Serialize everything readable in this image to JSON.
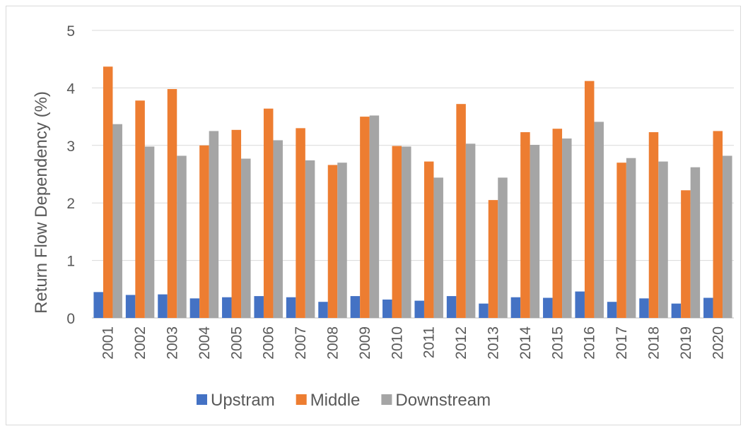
{
  "chart_data": {
    "type": "bar",
    "title": "",
    "xlabel": "",
    "ylabel": "Return Flow Dependency  (%)",
    "ylim": [
      0,
      5
    ],
    "yticks": [
      0,
      1,
      2,
      3,
      4,
      5
    ],
    "grid": true,
    "legend_position": "bottom",
    "categories": [
      "2001",
      "2002",
      "2003",
      "2004",
      "2005",
      "2006",
      "2007",
      "2008",
      "2009",
      "2010",
      "2011",
      "2012",
      "2013",
      "2014",
      "2015",
      "2016",
      "2017",
      "2018",
      "2019",
      "2020"
    ],
    "series": [
      {
        "name": "Upstram",
        "color": "#4472c4",
        "values": [
          0.45,
          0.4,
          0.41,
          0.34,
          0.36,
          0.38,
          0.36,
          0.28,
          0.38,
          0.32,
          0.3,
          0.38,
          0.25,
          0.36,
          0.35,
          0.46,
          0.28,
          0.34,
          0.25,
          0.35
        ]
      },
      {
        "name": "Middle",
        "color": "#ed7d31",
        "values": [
          4.37,
          3.78,
          3.98,
          3.0,
          3.27,
          3.64,
          3.3,
          2.66,
          3.5,
          2.99,
          2.72,
          3.72,
          2.05,
          3.23,
          3.29,
          4.12,
          2.7,
          3.23,
          2.22,
          3.25
        ]
      },
      {
        "name": "Downstream",
        "color": "#a5a5a5",
        "values": [
          3.37,
          2.98,
          2.82,
          3.25,
          2.77,
          3.09,
          2.74,
          2.7,
          3.52,
          2.98,
          2.44,
          3.03,
          2.44,
          3.01,
          3.12,
          3.41,
          2.78,
          2.72,
          2.62,
          2.82
        ]
      }
    ]
  }
}
